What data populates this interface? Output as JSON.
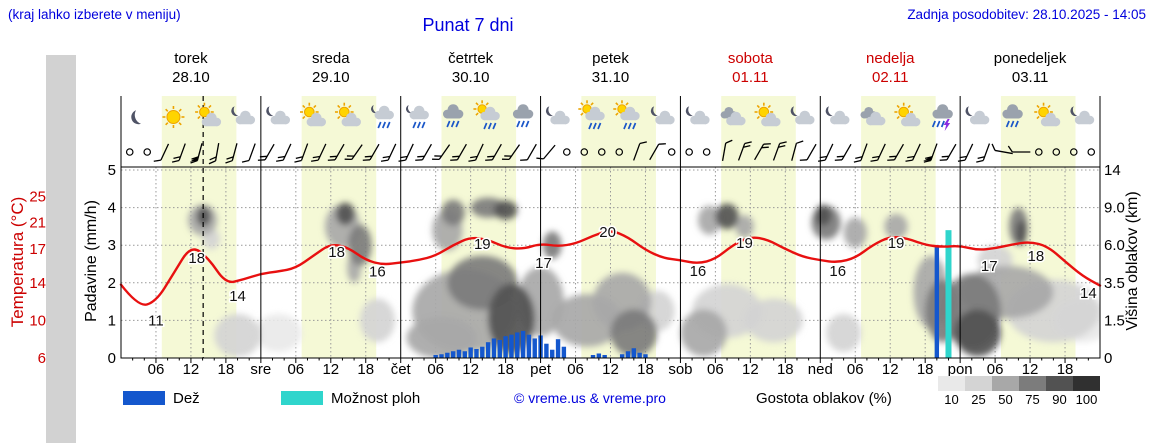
{
  "header": {
    "hint": "(kraj lahko izberete v meniju)",
    "title": "Punat 7 dni",
    "updated": "Zadnja posodobitev: 28.10.2025 - 14:05"
  },
  "colors": {
    "blue": "#0000dd",
    "red": "#cc0000",
    "temp_line": "#e81010",
    "rain": "#1457cd",
    "shower": "#2fd5cc",
    "dayband": "#f5f9d6",
    "grid": "#999999",
    "cloud_scale": [
      "#e9e9e9",
      "#d4d4d4",
      "#a8a8a8",
      "#7c7c7c",
      "#525252",
      "#303030"
    ]
  },
  "days": [
    {
      "name": "torek",
      "date": "28.10",
      "weekend": false
    },
    {
      "name": "sreda",
      "date": "29.10",
      "weekend": false
    },
    {
      "name": "četrtek",
      "date": "30.10",
      "weekend": false
    },
    {
      "name": "petek",
      "date": "31.10",
      "weekend": false
    },
    {
      "name": "sobota",
      "date": "01.11",
      "weekend": true
    },
    {
      "name": "nedelja",
      "date": "02.11",
      "weekend": true
    },
    {
      "name": "ponedeljek",
      "date": "03.11",
      "weekend": false
    }
  ],
  "axes": {
    "temp_label": "Temperatura (°C)",
    "temp_ticks": [
      "25",
      "21",
      "17",
      "14",
      "10",
      "6"
    ],
    "rain_label": "Padavine (mm/h)",
    "rain_ticks": [
      "5",
      "4",
      "3",
      "2",
      "1",
      "0"
    ],
    "cloud_label": "Višina oblakov (km)",
    "cloud_ticks": [
      "14",
      "9.0",
      "6.0",
      "3.5",
      "1.5",
      "0"
    ],
    "x_ticks": [
      "06",
      "12",
      "18"
    ],
    "day_abbrs": [
      "sre",
      "čet",
      "pet",
      "sob",
      "ned",
      "pon"
    ]
  },
  "legend": {
    "rain": "Dež",
    "shower": "Možnost ploh",
    "copyright": "© vreme.us & vreme.pro",
    "cloud": "Gostota oblakov (%)",
    "cloud_scale": [
      "10",
      "25",
      "50",
      "75",
      "90",
      "100"
    ]
  },
  "chart_data": {
    "type": "meteogram",
    "hours_total": 168,
    "temp_axis_map": [
      [
        6,
        0
      ],
      [
        10,
        1
      ],
      [
        14,
        2
      ],
      [
        17,
        2.9
      ],
      [
        21,
        3.6
      ],
      [
        25,
        4.3
      ]
    ],
    "cloud_axis_map": [
      [
        0,
        0
      ],
      [
        1.5,
        1
      ],
      [
        3.5,
        2
      ],
      [
        6,
        3
      ],
      [
        9,
        4
      ],
      [
        14,
        5
      ]
    ],
    "cloud_density_levels": [
      10,
      25,
      50,
      75,
      90,
      100
    ],
    "day_band_hours": [
      7,
      19.8
    ],
    "now_hour": 14.1,
    "temperature": {
      "start_hour": 0,
      "step_hours": 3,
      "values_c": [
        13.8,
        11.4,
        12.0,
        14.8,
        17.6,
        16.2,
        13.9,
        14.3,
        14.8,
        15.0,
        15.3,
        16.4,
        17.8,
        17.2,
        16.0,
        15.6,
        15.8,
        16.0,
        16.4,
        17.6,
        18.8,
        18.4,
        17.2,
        17.0,
        17.8,
        17.4,
        17.8,
        19.0,
        19.9,
        18.8,
        16.9,
        16.2,
        16.0,
        15.7,
        16.1,
        17.6,
        18.9,
        18.4,
        17.0,
        16.3,
        16.0,
        15.8,
        16.2,
        17.6,
        18.9,
        18.6,
        17.6,
        17.3,
        17.5,
        16.9,
        17.1,
        17.7,
        18.1,
        17.4,
        15.9,
        14.6,
        13.7
      ]
    },
    "temp_point_labels": [
      [
        6,
        1.0,
        "11"
      ],
      [
        13,
        2.66,
        "18"
      ],
      [
        20,
        1.65,
        "14"
      ],
      [
        37,
        2.82,
        "18"
      ],
      [
        44,
        2.3,
        "16"
      ],
      [
        62,
        3.03,
        "19"
      ],
      [
        72.5,
        2.53,
        "17"
      ],
      [
        83.5,
        3.35,
        "20"
      ],
      [
        99,
        2.31,
        "16"
      ],
      [
        107,
        3.06,
        "19"
      ],
      [
        123,
        2.31,
        "16"
      ],
      [
        133,
        3.06,
        "19"
      ],
      [
        149,
        2.45,
        "17"
      ],
      [
        157,
        2.71,
        "18"
      ],
      [
        166,
        1.73,
        "14"
      ]
    ],
    "rain": [
      [
        54,
        0.08
      ],
      [
        55,
        0.1
      ],
      [
        56,
        0.14
      ],
      [
        57,
        0.18
      ],
      [
        58,
        0.22
      ],
      [
        59,
        0.18
      ],
      [
        60,
        0.28
      ],
      [
        61,
        0.24
      ],
      [
        62,
        0.3
      ],
      [
        63,
        0.42
      ],
      [
        64,
        0.52
      ],
      [
        65,
        0.48
      ],
      [
        66,
        0.58
      ],
      [
        67,
        0.62
      ],
      [
        68,
        0.68
      ],
      [
        69,
        0.72
      ],
      [
        70,
        0.62
      ],
      [
        71,
        0.52
      ],
      [
        72,
        0.6
      ],
      [
        73,
        0.38
      ],
      [
        74,
        0.22
      ],
      [
        75,
        0.5
      ],
      [
        76,
        0.3
      ],
      [
        81,
        0.08
      ],
      [
        82,
        0.12
      ],
      [
        83,
        0.08
      ],
      [
        86,
        0.1
      ],
      [
        87,
        0.18
      ],
      [
        88,
        0.26
      ],
      [
        89,
        0.14
      ],
      [
        90,
        0.1
      ],
      [
        140,
        2.95
      ]
    ],
    "showers": [
      [
        142,
        3.4
      ]
    ],
    "clouds": [
      [
        14,
        8,
        2.5,
        1.3,
        50
      ],
      [
        14.2,
        8.3,
        1.2,
        0.8,
        90
      ],
      [
        15.5,
        6.5,
        1.5,
        0.8,
        25
      ],
      [
        20,
        0.9,
        4,
        0.9,
        25
      ],
      [
        27,
        1,
        4,
        0.8,
        10
      ],
      [
        38,
        7.5,
        3,
        1.8,
        50
      ],
      [
        38.5,
        8.5,
        1.6,
        1,
        90
      ],
      [
        41,
        6,
        2,
        1.5,
        75
      ],
      [
        40,
        4.5,
        1.2,
        1,
        50
      ],
      [
        44,
        1.5,
        3,
        1,
        25
      ],
      [
        56,
        7.2,
        2.6,
        1.6,
        50
      ],
      [
        57,
        8.6,
        2,
        1.2,
        75
      ],
      [
        63,
        9,
        3,
        1,
        75
      ],
      [
        66,
        8.8,
        2,
        0.9,
        90
      ],
      [
        59,
        2,
        9,
        2,
        50
      ],
      [
        62,
        3.5,
        6,
        1.6,
        75
      ],
      [
        67,
        1.6,
        4,
        1.6,
        90
      ],
      [
        55,
        0.8,
        6,
        0.9,
        50
      ],
      [
        72,
        2.5,
        4,
        1.8,
        50
      ],
      [
        74,
        6,
        1.6,
        1,
        75
      ],
      [
        80,
        1.5,
        6,
        1.2,
        50
      ],
      [
        86,
        2.5,
        5,
        1.5,
        50
      ],
      [
        88,
        1,
        4,
        1,
        75
      ],
      [
        92,
        2,
        3,
        1,
        25
      ],
      [
        101,
        8,
        2,
        1.2,
        50
      ],
      [
        104,
        8.3,
        2,
        1.1,
        90
      ],
      [
        107,
        7.5,
        1.6,
        0.9,
        50
      ],
      [
        100,
        1,
        4,
        1,
        50
      ],
      [
        104,
        2,
        6,
        1.3,
        25
      ],
      [
        112,
        1.5,
        5,
        1,
        25
      ],
      [
        121,
        7.8,
        2.5,
        1.4,
        75
      ],
      [
        120.5,
        8.4,
        1.4,
        0.9,
        90
      ],
      [
        126,
        7,
        2,
        1.2,
        50
      ],
      [
        124,
        1,
        3,
        0.8,
        25
      ],
      [
        133,
        7.5,
        2,
        1,
        50
      ],
      [
        139,
        3,
        3,
        2,
        50
      ],
      [
        141,
        2,
        3,
        1.5,
        75
      ],
      [
        146,
        2,
        5,
        1.8,
        75
      ],
      [
        147,
        1,
        4,
        1,
        90
      ],
      [
        152,
        3,
        8,
        1.5,
        50
      ],
      [
        154,
        7.5,
        1.6,
        1.5,
        75
      ],
      [
        154.5,
        7,
        0.9,
        1,
        90
      ],
      [
        160,
        2,
        8,
        1.5,
        25
      ],
      [
        165,
        1.5,
        5,
        1,
        10
      ],
      [
        150,
        5,
        3,
        1,
        25
      ]
    ],
    "icons": [
      [
        3,
        "moon"
      ],
      [
        9,
        "sun"
      ],
      [
        15,
        "sun-cloud"
      ],
      [
        21,
        "cloud-moon"
      ],
      [
        27,
        "cloud-moon"
      ],
      [
        33,
        "sun-cloud"
      ],
      [
        39,
        "sun-cloud"
      ],
      [
        45,
        "rain-moon"
      ],
      [
        51,
        "rain-moon"
      ],
      [
        57,
        "rain"
      ],
      [
        63,
        "sun-rain"
      ],
      [
        69,
        "rain"
      ],
      [
        75,
        "cloud-moon"
      ],
      [
        81,
        "sun-rain"
      ],
      [
        87,
        "sun-rain"
      ],
      [
        93,
        "cloud-moon"
      ],
      [
        99,
        "cloud-moon"
      ],
      [
        105,
        "cloud"
      ],
      [
        111,
        "sun-cloud"
      ],
      [
        117,
        "cloud-moon"
      ],
      [
        123,
        "cloud-moon"
      ],
      [
        129,
        "cloud"
      ],
      [
        135,
        "sun-cloud"
      ],
      [
        141,
        "storm"
      ],
      [
        147,
        "cloud-moon"
      ],
      [
        153,
        "rain"
      ],
      [
        159,
        "sun-cloud"
      ],
      [
        165,
        "cloud-moon"
      ]
    ],
    "wind": [
      [
        1.5,
        0,
        0
      ],
      [
        4.5,
        0,
        0
      ],
      [
        7.5,
        1,
        205
      ],
      [
        10.5,
        2,
        200
      ],
      [
        13.5,
        3,
        195
      ],
      [
        16.5,
        2,
        190
      ],
      [
        19.5,
        2,
        195
      ],
      [
        22.5,
        1,
        200
      ],
      [
        25.5,
        2,
        210
      ],
      [
        28.5,
        2,
        205
      ],
      [
        31.5,
        2,
        200
      ],
      [
        34.5,
        2,
        205
      ],
      [
        37.5,
        2,
        210
      ],
      [
        40.5,
        2,
        215
      ],
      [
        43.5,
        2,
        210
      ],
      [
        46.5,
        2,
        205
      ],
      [
        49.5,
        2,
        205
      ],
      [
        52.5,
        2,
        210
      ],
      [
        55.5,
        2,
        215
      ],
      [
        58.5,
        2,
        210
      ],
      [
        61.5,
        2,
        205
      ],
      [
        64.5,
        2,
        210
      ],
      [
        67.5,
        2,
        215
      ],
      [
        70.5,
        1,
        210
      ],
      [
        73.5,
        1,
        220
      ],
      [
        76.5,
        0,
        0
      ],
      [
        79.5,
        0,
        0
      ],
      [
        82.5,
        0,
        0
      ],
      [
        85.5,
        0,
        0
      ],
      [
        88.5,
        1,
        20
      ],
      [
        91.5,
        1,
        30
      ],
      [
        94.5,
        0,
        0
      ],
      [
        97.5,
        0,
        0
      ],
      [
        100.5,
        0,
        0
      ],
      [
        103.5,
        1,
        10
      ],
      [
        106.5,
        2,
        20
      ],
      [
        109.5,
        2,
        30
      ],
      [
        112.5,
        2,
        20
      ],
      [
        115.5,
        1,
        15
      ],
      [
        118.5,
        1,
        210
      ],
      [
        121.5,
        2,
        205
      ],
      [
        124.5,
        2,
        210
      ],
      [
        127.5,
        2,
        200
      ],
      [
        130.5,
        2,
        205
      ],
      [
        133.5,
        2,
        210
      ],
      [
        136.5,
        2,
        205
      ],
      [
        139.5,
        3,
        200
      ],
      [
        142.5,
        2,
        210
      ],
      [
        145.5,
        2,
        205
      ],
      [
        148.5,
        2,
        200
      ],
      [
        151.5,
        1,
        280
      ],
      [
        154.5,
        1,
        270
      ],
      [
        157.5,
        0,
        0
      ],
      [
        160.5,
        0,
        0
      ],
      [
        163.5,
        0,
        0
      ],
      [
        166.5,
        0,
        0
      ]
    ]
  }
}
